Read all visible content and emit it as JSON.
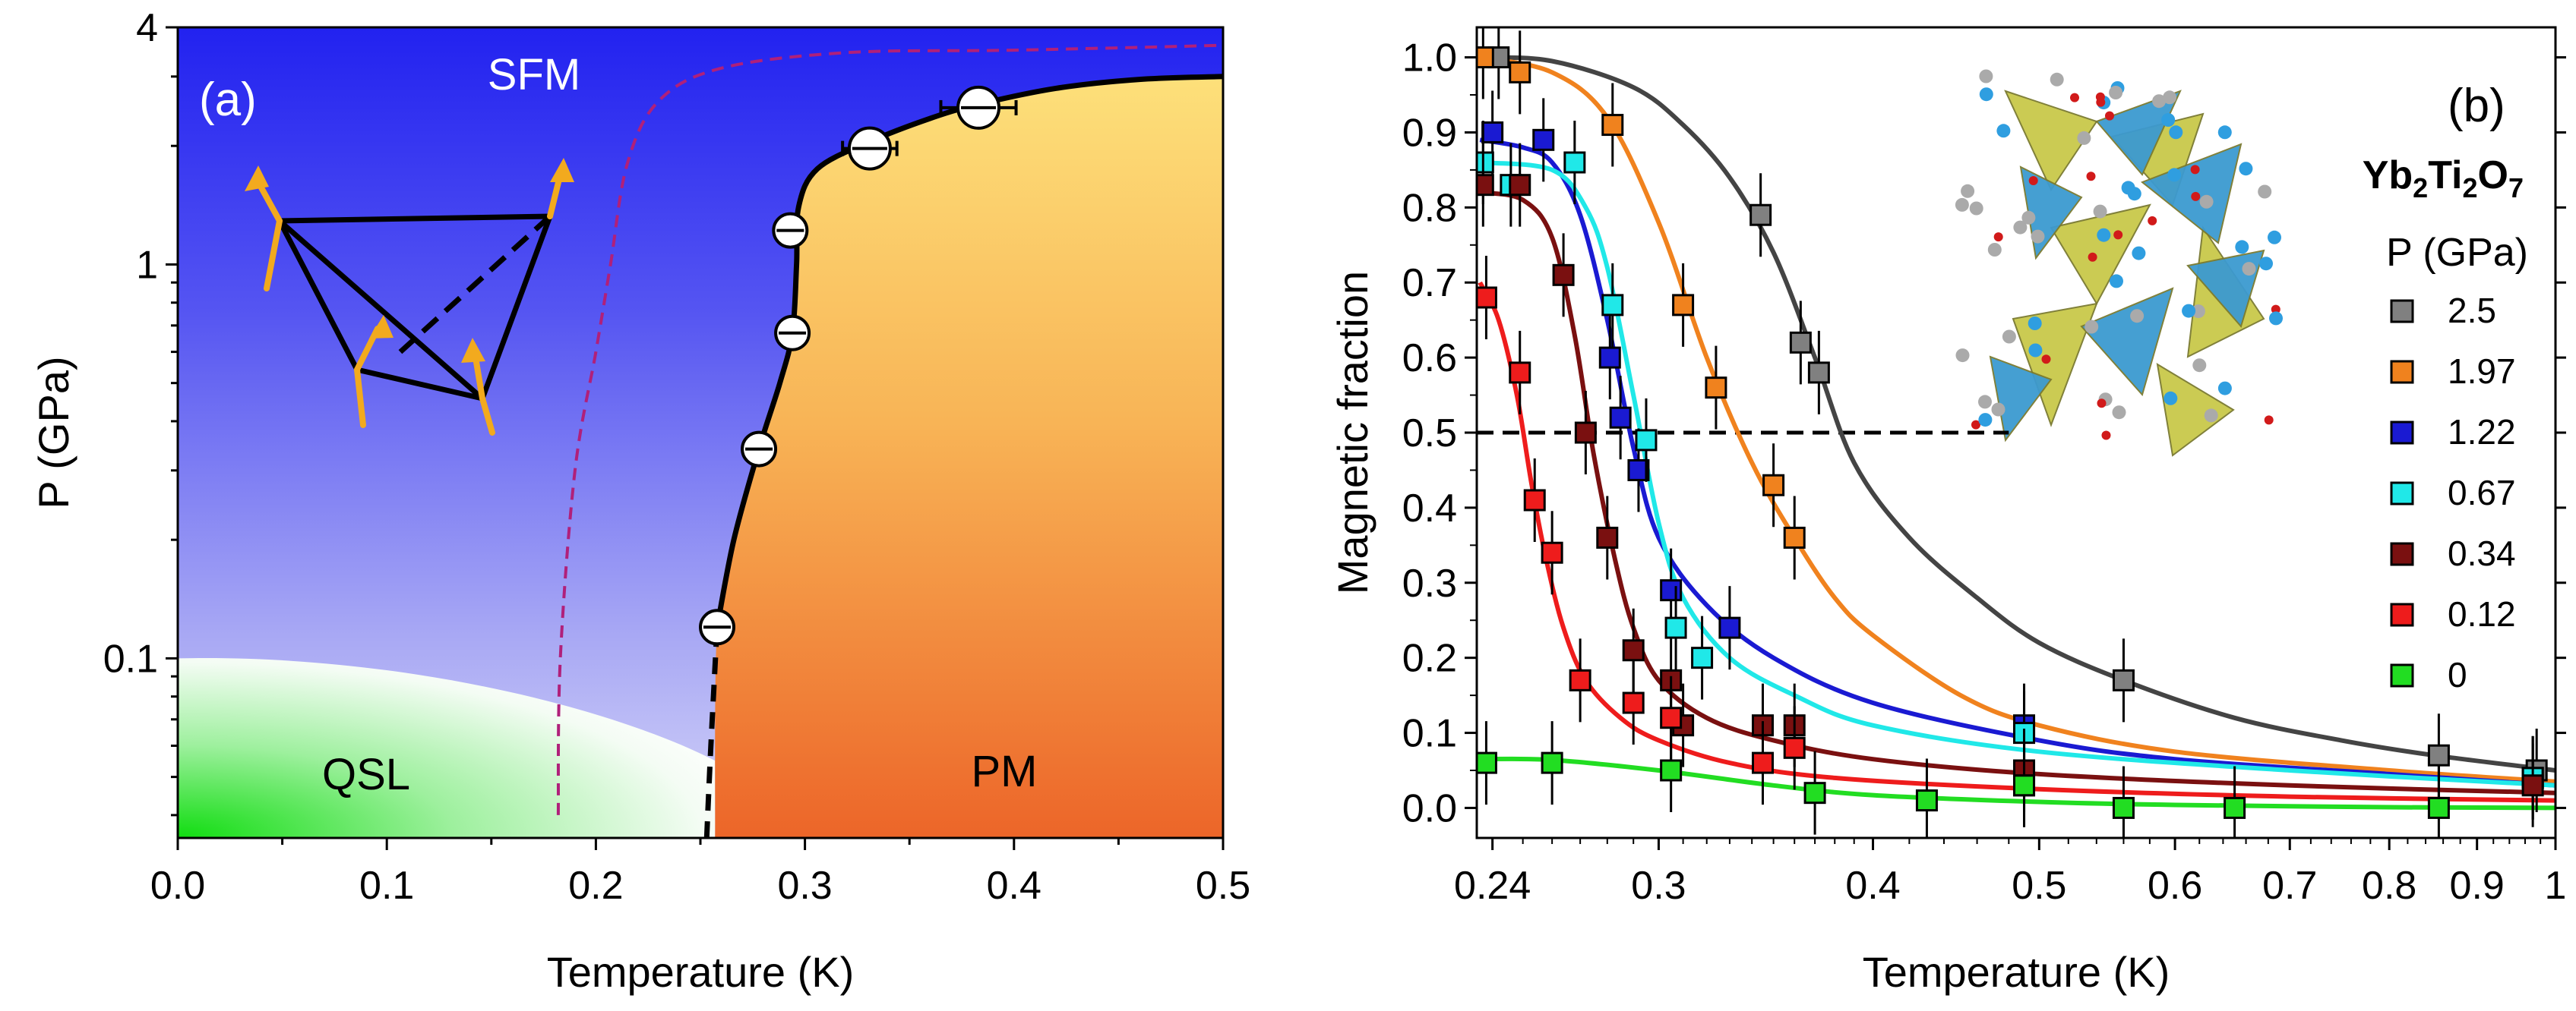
{
  "chart_data": [
    {
      "type": "phase-diagram",
      "panel_label": "(a)",
      "xlabel": "Temperature (K)",
      "ylabel": "P (GPa)",
      "xlim": [
        0.0,
        0.5
      ],
      "ylim": [
        0.035,
        4
      ],
      "yscale": "log",
      "x_ticks": [
        "0.0",
        "0.1",
        "0.2",
        "0.3",
        "0.4",
        "0.5"
      ],
      "x_tick_values": [
        0.0,
        0.1,
        0.2,
        0.3,
        0.4,
        0.5
      ],
      "y_ticks": [
        "4",
        "1",
        "0.1"
      ],
      "y_tick_values": [
        4,
        1,
        0.1
      ],
      "regions": {
        "top": "SFM",
        "bottom_left": "QSL",
        "bottom_right": "PM"
      },
      "colors": {
        "sfm": "#2b2bf2",
        "sfm_light": "#c8c8f6",
        "qsl": "#22dd22",
        "pm_top": "#fcd86e",
        "pm_bottom": "#ec6a2a",
        "boundary_dashed": "#b0207a",
        "spin_arrow": "#f2aa1e"
      },
      "points": [
        {
          "T": 0.258,
          "P": 0.12,
          "xerr": 0.006
        },
        {
          "T": 0.278,
          "P": 0.34,
          "xerr": 0.005
        },
        {
          "T": 0.294,
          "P": 0.67,
          "xerr": 0.006
        },
        {
          "T": 0.293,
          "P": 1.22,
          "xerr": 0.006
        },
        {
          "T": 0.331,
          "P": 1.97,
          "xerr": 0.013
        },
        {
          "T": 0.383,
          "P": 2.5,
          "xerr": 0.018
        }
      ],
      "boundary_solid": [
        [
          0.257,
          0.035
        ],
        [
          0.258,
          0.12
        ],
        [
          0.266,
          0.2
        ],
        [
          0.278,
          0.34
        ],
        [
          0.288,
          0.5
        ],
        [
          0.294,
          0.67
        ],
        [
          0.296,
          1.0
        ],
        [
          0.297,
          1.4
        ],
        [
          0.306,
          1.75
        ],
        [
          0.331,
          2.05
        ],
        [
          0.36,
          2.35
        ],
        [
          0.383,
          2.55
        ],
        [
          0.42,
          2.8
        ],
        [
          0.46,
          2.95
        ],
        [
          0.5,
          3.0
        ]
      ],
      "boundary_dashed_black": [
        [
          0.253,
          0.035
        ],
        [
          0.255,
          0.06
        ],
        [
          0.258,
          0.12
        ]
      ],
      "boundary_dashed_magenta": [
        [
          0.182,
          0.04
        ],
        [
          0.183,
          0.1
        ],
        [
          0.19,
          0.3
        ],
        [
          0.2,
          0.6
        ],
        [
          0.207,
          1.0
        ],
        [
          0.215,
          1.8
        ],
        [
          0.23,
          2.6
        ],
        [
          0.26,
          3.15
        ],
        [
          0.32,
          3.45
        ],
        [
          0.4,
          3.5
        ],
        [
          0.5,
          3.6
        ]
      ]
    },
    {
      "type": "scatter+line",
      "panel_label": "(b)",
      "xlabel": "Temperature (K)",
      "ylabel": "Magnetic fraction",
      "xscale": "log",
      "xlim": [
        0.235,
        1.0
      ],
      "ylim": [
        -0.04,
        1.04
      ],
      "x_ticks": [
        "0.24",
        "0.3",
        "0.4",
        "0.5",
        "0.6",
        "0.7",
        "0.8",
        "0.9",
        "1"
      ],
      "x_tick_values": [
        0.24,
        0.3,
        0.4,
        0.5,
        0.6,
        0.7,
        0.8,
        0.9,
        1.0
      ],
      "y_ticks": [
        "0.0",
        "0.1",
        "0.2",
        "0.3",
        "0.4",
        "0.5",
        "0.6",
        "0.7",
        "0.8",
        "0.9",
        "1.0"
      ],
      "y_tick_values": [
        0.0,
        0.1,
        0.2,
        0.3,
        0.4,
        0.5,
        0.6,
        0.7,
        0.8,
        0.9,
        1.0
      ],
      "reference_line": {
        "y": 0.5,
        "x_end": 0.48,
        "style": "dashed"
      },
      "material_label": {
        "base": "Yb",
        "sub1": "2",
        "mid": "Ti",
        "sub2": "2",
        "end": "O",
        "sub3": "7"
      },
      "legend_title": "P (GPa)",
      "series": [
        {
          "name": "2.5",
          "color": "#808080",
          "line_color": "#444444",
          "points": [
            [
              0.242,
              1.0
            ],
            [
              0.344,
              0.79
            ],
            [
              0.363,
              0.62
            ],
            [
              0.372,
              0.58
            ],
            [
              0.56,
              0.17
            ],
            [
              0.855,
              0.07
            ],
            [
              0.975,
              0.05
            ]
          ],
          "curve": [
            [
              0.236,
              1.0
            ],
            [
              0.26,
              0.995
            ],
            [
              0.29,
              0.96
            ],
            [
              0.31,
              0.91
            ],
            [
              0.33,
              0.84
            ],
            [
              0.35,
              0.74
            ],
            [
              0.37,
              0.6
            ],
            [
              0.39,
              0.46
            ],
            [
              0.42,
              0.36
            ],
            [
              0.46,
              0.28
            ],
            [
              0.5,
              0.22
            ],
            [
              0.56,
              0.17
            ],
            [
              0.65,
              0.12
            ],
            [
              0.75,
              0.09
            ],
            [
              0.85,
              0.07
            ],
            [
              1.0,
              0.05
            ]
          ]
        },
        {
          "name": "1.97",
          "color": "#f0821e",
          "line_color": "#f0821e",
          "points": [
            [
              0.237,
              1.0
            ],
            [
              0.249,
              0.98
            ],
            [
              0.282,
              0.91
            ],
            [
              0.31,
              0.67
            ],
            [
              0.324,
              0.56
            ],
            [
              0.35,
              0.43
            ],
            [
              0.36,
              0.36
            ],
            [
              0.49,
              0.1
            ],
            [
              0.97,
              0.04
            ]
          ],
          "curve": [
            [
              0.236,
              1.0
            ],
            [
              0.26,
              0.98
            ],
            [
              0.28,
              0.92
            ],
            [
              0.3,
              0.78
            ],
            [
              0.32,
              0.6
            ],
            [
              0.34,
              0.46
            ],
            [
              0.36,
              0.36
            ],
            [
              0.38,
              0.28
            ],
            [
              0.4,
              0.23
            ],
            [
              0.45,
              0.15
            ],
            [
              0.5,
              0.11
            ],
            [
              0.6,
              0.075
            ],
            [
              0.8,
              0.05
            ],
            [
              1.0,
              0.035
            ]
          ]
        },
        {
          "name": "1.22",
          "color": "#1a1ad2",
          "line_color": "#1a1ad2",
          "points": [
            [
              0.24,
              0.9
            ],
            [
              0.257,
              0.89
            ],
            [
              0.281,
              0.6
            ],
            [
              0.285,
              0.52
            ],
            [
              0.292,
              0.45
            ],
            [
              0.305,
              0.29
            ],
            [
              0.33,
              0.24
            ],
            [
              0.49,
              0.11
            ],
            [
              0.97,
              0.04
            ]
          ],
          "curve": [
            [
              0.236,
              0.89
            ],
            [
              0.25,
              0.88
            ],
            [
              0.26,
              0.86
            ],
            [
              0.27,
              0.79
            ],
            [
              0.28,
              0.65
            ],
            [
              0.29,
              0.48
            ],
            [
              0.3,
              0.36
            ],
            [
              0.32,
              0.27
            ],
            [
              0.35,
              0.2
            ],
            [
              0.4,
              0.14
            ],
            [
              0.5,
              0.09
            ],
            [
              0.6,
              0.065
            ],
            [
              0.8,
              0.045
            ],
            [
              1.0,
              0.03
            ]
          ]
        },
        {
          "name": "0.67",
          "color": "#20e8e8",
          "line_color": "#20e8e8",
          "points": [
            [
              0.237,
              0.86
            ],
            [
              0.246,
              0.83
            ],
            [
              0.268,
              0.86
            ],
            [
              0.282,
              0.67
            ],
            [
              0.295,
              0.49
            ],
            [
              0.307,
              0.24
            ],
            [
              0.318,
              0.2
            ],
            [
              0.49,
              0.1
            ],
            [
              0.97,
              0.04
            ]
          ],
          "curve": [
            [
              0.236,
              0.86
            ],
            [
              0.26,
              0.85
            ],
            [
              0.272,
              0.8
            ],
            [
              0.28,
              0.72
            ],
            [
              0.29,
              0.55
            ],
            [
              0.3,
              0.38
            ],
            [
              0.31,
              0.28
            ],
            [
              0.33,
              0.2
            ],
            [
              0.36,
              0.15
            ],
            [
              0.4,
              0.11
            ],
            [
              0.5,
              0.075
            ],
            [
              0.7,
              0.05
            ],
            [
              1.0,
              0.03
            ]
          ]
        },
        {
          "name": "0.34",
          "color": "#7a1010",
          "line_color": "#7a1010",
          "points": [
            [
              0.237,
              0.83
            ],
            [
              0.249,
              0.83
            ],
            [
              0.264,
              0.71
            ],
            [
              0.272,
              0.5
            ],
            [
              0.28,
              0.36
            ],
            [
              0.29,
              0.21
            ],
            [
              0.305,
              0.17
            ],
            [
              0.31,
              0.11
            ],
            [
              0.345,
              0.11
            ],
            [
              0.36,
              0.11
            ],
            [
              0.49,
              0.05
            ],
            [
              0.97,
              0.03
            ]
          ],
          "curve": [
            [
              0.236,
              0.82
            ],
            [
              0.25,
              0.81
            ],
            [
              0.26,
              0.76
            ],
            [
              0.268,
              0.63
            ],
            [
              0.275,
              0.47
            ],
            [
              0.283,
              0.33
            ],
            [
              0.29,
              0.24
            ],
            [
              0.3,
              0.17
            ],
            [
              0.32,
              0.12
            ],
            [
              0.35,
              0.09
            ],
            [
              0.4,
              0.065
            ],
            [
              0.5,
              0.045
            ],
            [
              0.7,
              0.03
            ],
            [
              1.0,
              0.02
            ]
          ]
        },
        {
          "name": "0.12",
          "color": "#ee1c1c",
          "line_color": "#ee1c1c",
          "points": [
            [
              0.238,
              0.68
            ],
            [
              0.249,
              0.58
            ],
            [
              0.254,
              0.41
            ],
            [
              0.26,
              0.34
            ],
            [
              0.27,
              0.17
            ],
            [
              0.29,
              0.14
            ],
            [
              0.305,
              0.12
            ],
            [
              0.345,
              0.06
            ],
            [
              0.36,
              0.08
            ],
            [
              0.49,
              0.03
            ]
          ],
          "curve": [
            [
              0.236,
              0.7
            ],
            [
              0.242,
              0.65
            ],
            [
              0.248,
              0.55
            ],
            [
              0.253,
              0.43
            ],
            [
              0.258,
              0.33
            ],
            [
              0.264,
              0.24
            ],
            [
              0.272,
              0.17
            ],
            [
              0.285,
              0.12
            ],
            [
              0.3,
              0.09
            ],
            [
              0.33,
              0.06
            ],
            [
              0.38,
              0.04
            ],
            [
              0.5,
              0.025
            ],
            [
              0.7,
              0.015
            ],
            [
              1.0,
              0.01
            ]
          ]
        },
        {
          "name": "0",
          "color": "#22dd22",
          "line_color": "#22dd22",
          "points": [
            [
              0.238,
              0.06
            ],
            [
              0.26,
              0.06
            ],
            [
              0.305,
              0.05
            ],
            [
              0.37,
              0.02
            ],
            [
              0.43,
              0.01
            ],
            [
              0.49,
              0.03
            ],
            [
              0.56,
              0.0
            ],
            [
              0.65,
              0.0
            ],
            [
              0.855,
              0.0
            ]
          ],
          "curve": [
            [
              0.236,
              0.065
            ],
            [
              0.26,
              0.064
            ],
            [
              0.3,
              0.05
            ],
            [
              0.35,
              0.03
            ],
            [
              0.4,
              0.017
            ],
            [
              0.5,
              0.008
            ],
            [
              0.6,
              0.004
            ],
            [
              0.8,
              0.001
            ],
            [
              1.0,
              0.0
            ]
          ]
        }
      ]
    }
  ]
}
